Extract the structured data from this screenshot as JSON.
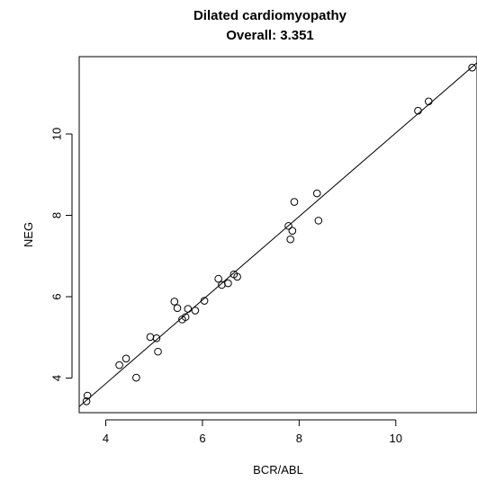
{
  "chart_data": {
    "type": "scatter",
    "title": "Dilated cardiomyopathy",
    "subtitle": "Overall: 3.351",
    "xlabel": "BCR/ABL",
    "ylabel": "NEG",
    "xlim": [
      3.45,
      11.68
    ],
    "ylim": [
      3.15,
      11.9
    ],
    "xticks": [
      4,
      6,
      8,
      10
    ],
    "yticks": [
      4,
      6,
      8,
      10
    ],
    "grid": false,
    "points": [
      {
        "x": 3.62,
        "y": 3.57
      },
      {
        "x": 3.6,
        "y": 3.43
      },
      {
        "x": 4.28,
        "y": 4.32
      },
      {
        "x": 4.42,
        "y": 4.48
      },
      {
        "x": 4.63,
        "y": 4.01
      },
      {
        "x": 4.92,
        "y": 5.01
      },
      {
        "x": 5.05,
        "y": 4.98
      },
      {
        "x": 5.08,
        "y": 4.65
      },
      {
        "x": 5.42,
        "y": 5.88
      },
      {
        "x": 5.48,
        "y": 5.72
      },
      {
        "x": 5.58,
        "y": 5.44
      },
      {
        "x": 5.65,
        "y": 5.5
      },
      {
        "x": 5.7,
        "y": 5.7
      },
      {
        "x": 5.85,
        "y": 5.66
      },
      {
        "x": 6.04,
        "y": 5.9
      },
      {
        "x": 6.33,
        "y": 6.44
      },
      {
        "x": 6.4,
        "y": 6.29
      },
      {
        "x": 6.53,
        "y": 6.33
      },
      {
        "x": 6.65,
        "y": 6.55
      },
      {
        "x": 6.72,
        "y": 6.49
      },
      {
        "x": 7.78,
        "y": 7.74
      },
      {
        "x": 7.82,
        "y": 7.41
      },
      {
        "x": 7.86,
        "y": 7.62
      },
      {
        "x": 7.9,
        "y": 8.33
      },
      {
        "x": 8.37,
        "y": 8.54
      },
      {
        "x": 8.4,
        "y": 7.87
      },
      {
        "x": 10.46,
        "y": 10.57
      },
      {
        "x": 10.68,
        "y": 10.8
      },
      {
        "x": 11.58,
        "y": 11.63
      }
    ],
    "fit_line": {
      "x1": 3.45,
      "y1": 3.3,
      "x2": 11.68,
      "y2": 11.75
    }
  }
}
